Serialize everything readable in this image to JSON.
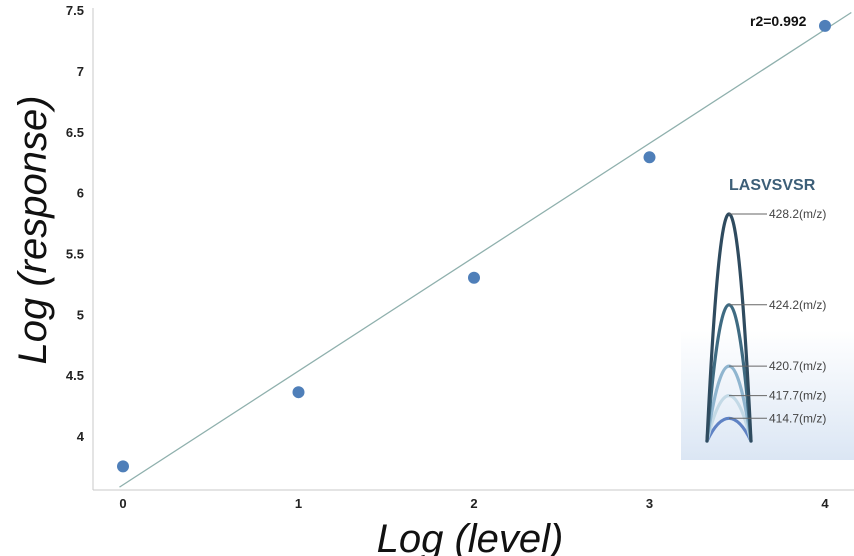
{
  "chart_data": {
    "type": "scatter",
    "xlabel": "Log (level)",
    "ylabel": "Log (response)",
    "xlim": [
      -0.15,
      4.15
    ],
    "ylim": [
      3.55,
      7.55
    ],
    "x_ticks": [
      0,
      1,
      2,
      3,
      4
    ],
    "y_ticks": [
      4,
      4.5,
      5,
      5.5,
      6,
      6.5,
      7,
      7.5
    ],
    "y_tick_labels": [
      "4",
      "4.5",
      "5",
      "5.5",
      "6",
      "6.5",
      "7",
      "7.5"
    ],
    "points": [
      {
        "x": 0,
        "y": 3.75
      },
      {
        "x": 1,
        "y": 4.36
      },
      {
        "x": 2,
        "y": 5.3
      },
      {
        "x": 3,
        "y": 6.29
      },
      {
        "x": 4,
        "y": 7.37
      }
    ],
    "fit_line": {
      "x": [
        -0.02,
        4.15
      ],
      "y": [
        3.58,
        7.48
      ]
    },
    "annotation": "r2=0.992",
    "grid": false,
    "colors": {
      "points": "#4f7fb9",
      "fit_line": "#8fb0ad",
      "axis": "#c8c8c8"
    },
    "inset": {
      "title": "LASVSVSR",
      "peaks": [
        {
          "label": "428.2(m/z)",
          "level": 1.0,
          "color": "#2f4b5f"
        },
        {
          "label": "424.2(m/z)",
          "level": 0.6,
          "color": "#3f6b82"
        },
        {
          "label": "420.7(m/z)",
          "level": 0.33,
          "color": "#8fb5cf"
        },
        {
          "label": "417.7(m/z)",
          "level": 0.2,
          "color": "#c3d9e6"
        },
        {
          "label": "414.7(m/z)",
          "level": 0.1,
          "color": "#5f82c4"
        }
      ]
    }
  }
}
